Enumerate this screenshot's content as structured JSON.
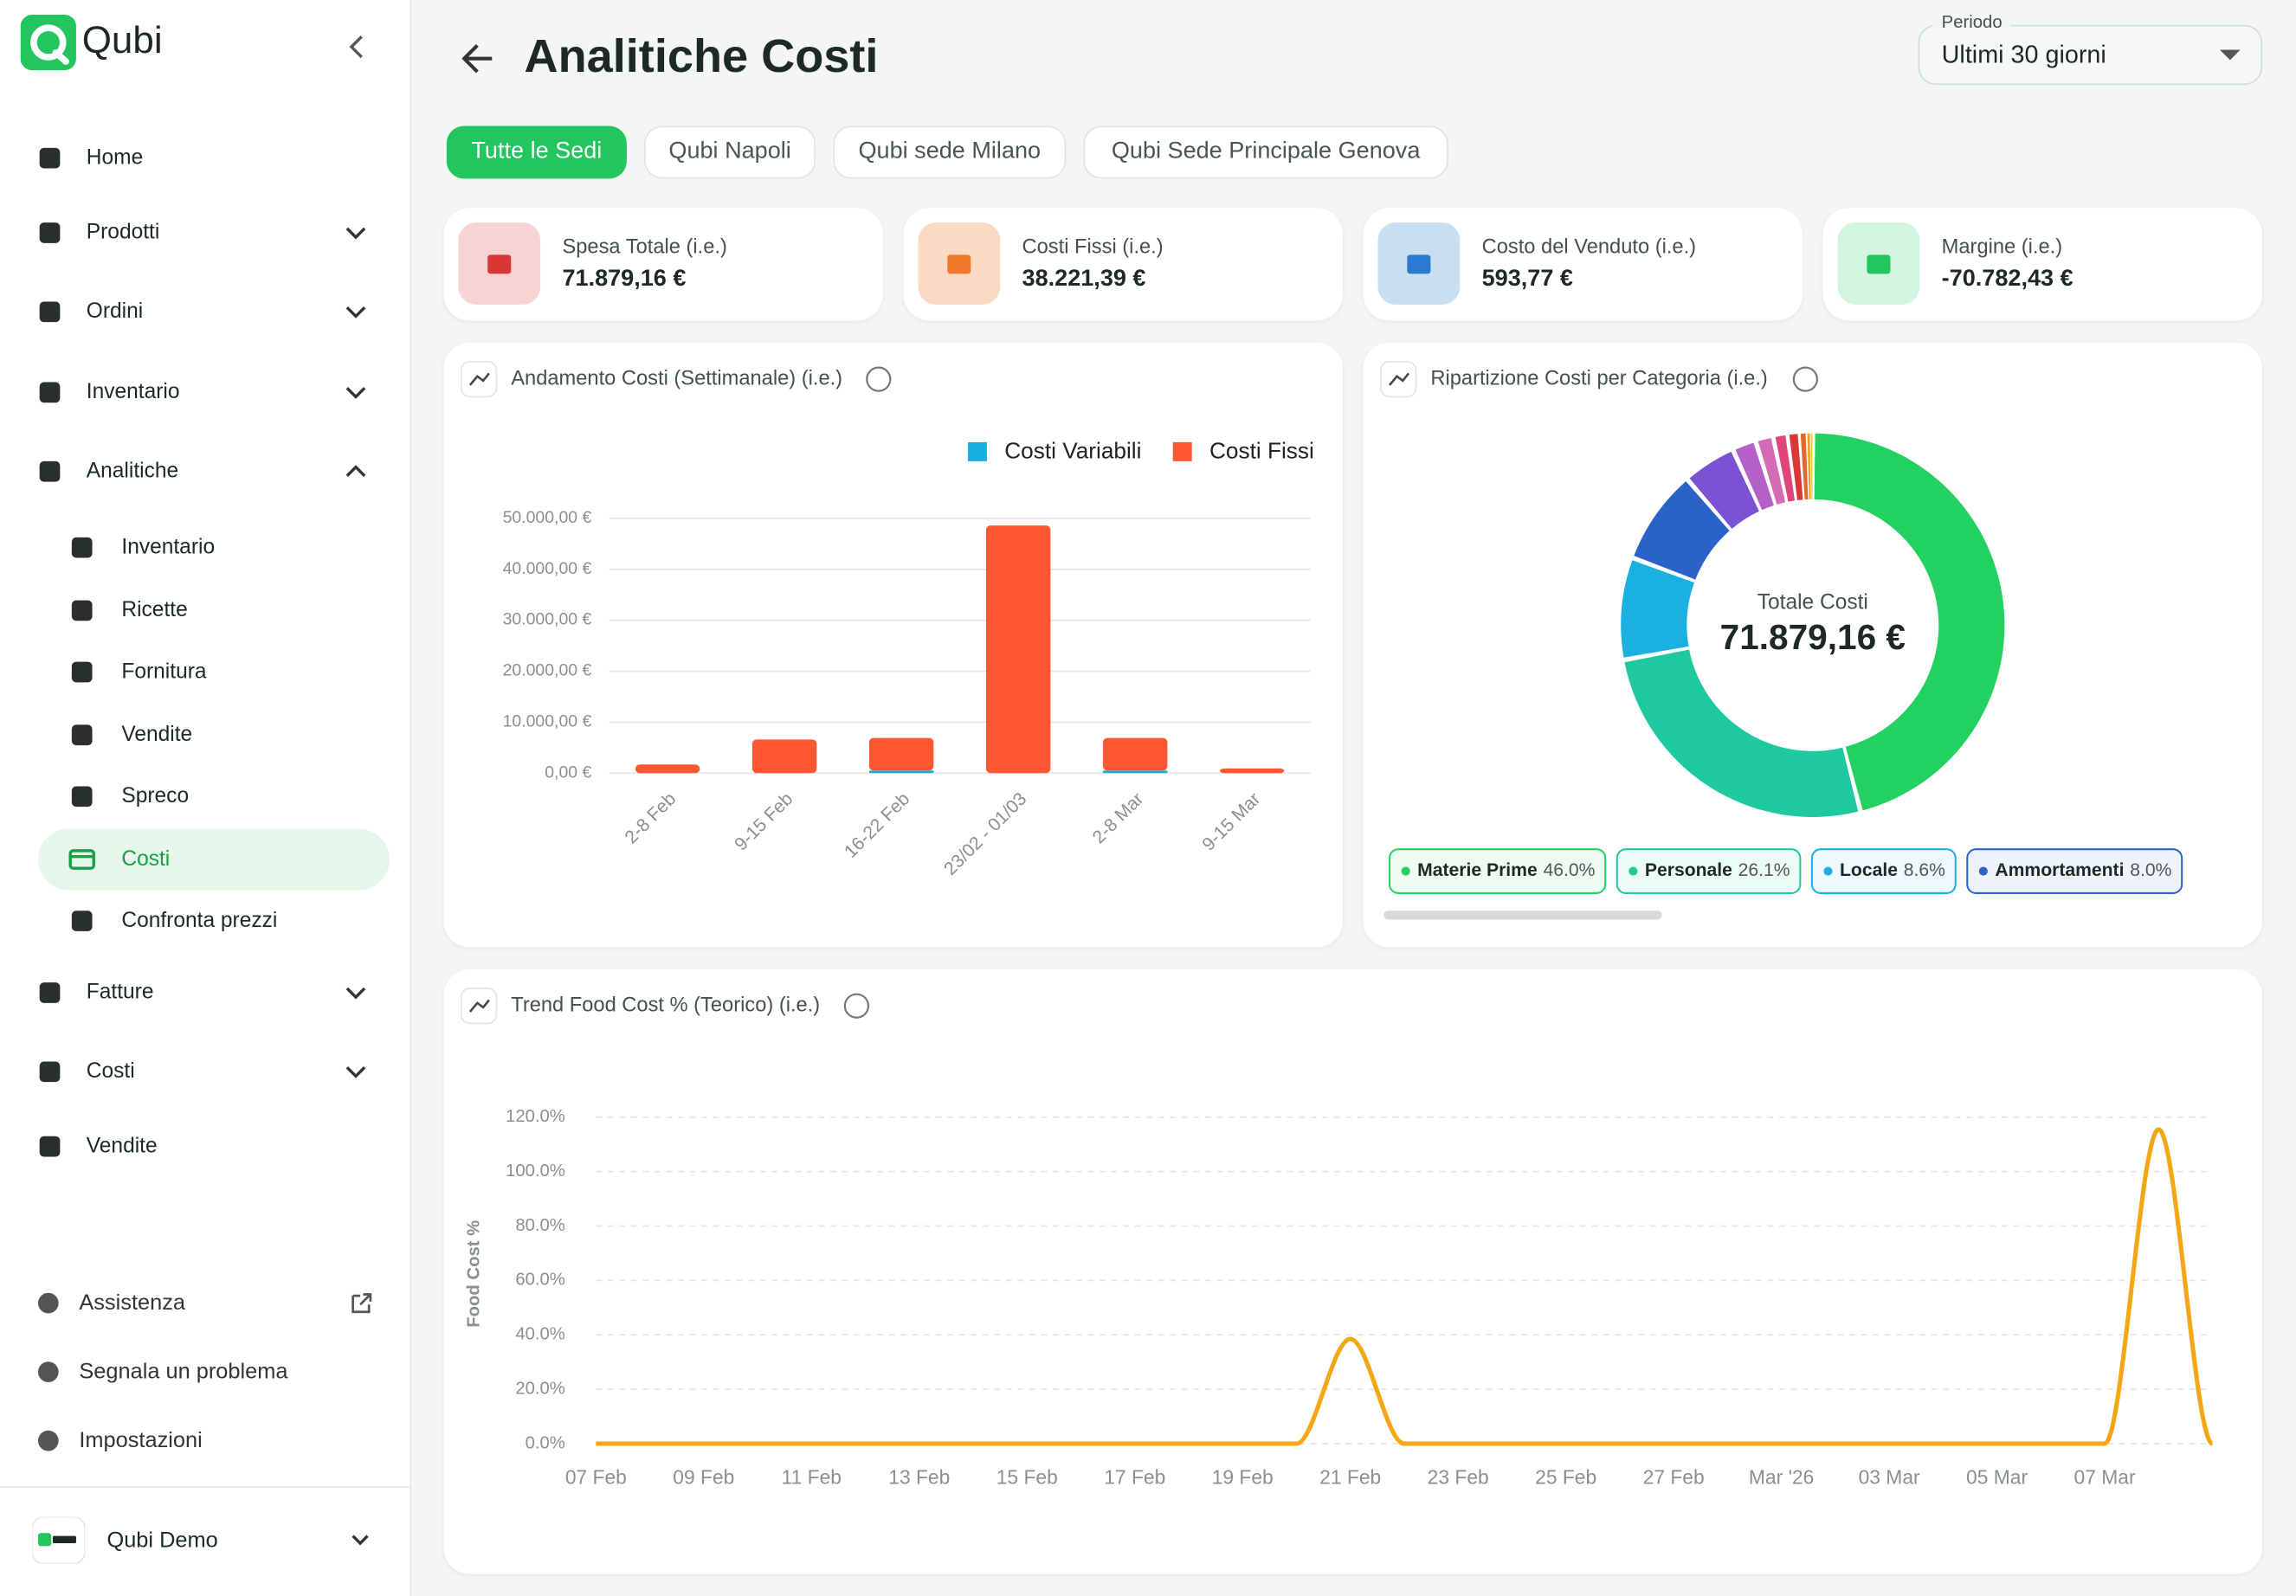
{
  "sidebar": {
    "logo": "Qubi",
    "nav": [
      "Home",
      "Prodotti",
      "Ordini",
      "Inventario",
      "Analitiche",
      "Fatture",
      "Costi",
      "Vendite"
    ],
    "sub_nav": [
      "Inventario",
      "Ricette",
      "Fornitura",
      "Vendite",
      "Spreco",
      "Costi",
      "Confronta prezzi"
    ],
    "bottom": [
      "Assistenza",
      "Segnala un problema",
      "Impostazioni"
    ],
    "user": "Qubi Demo"
  },
  "header": {
    "title": "Analitiche Costi",
    "period_label": "Periodo",
    "period_value": "Ultimi 30 giorni"
  },
  "tabs": [
    "Tutte le Sedi",
    "Qubi Napoli",
    "Qubi sede Milano",
    "Qubi Sede Principale Genova"
  ],
  "kpis": [
    {
      "label": "Spesa Totale (i.e.)",
      "value": "71.879,16 €"
    },
    {
      "label": "Costi Fissi (i.e.)",
      "value": "38.221,39 €"
    },
    {
      "label": "Costo del Venduto (i.e.)",
      "value": "593,77 €"
    },
    {
      "label": "Margine (i.e.)",
      "value": "-70.782,43 €"
    }
  ],
  "cost_chart": {
    "type": "stacked-bar",
    "title": "Andamento Costi (Settimanale) (i.e.)",
    "categories": [
      "2-8 Feb",
      "9-15 Feb",
      "16-22 Feb",
      "23/02 - 01/03",
      "2-8 Mar",
      "9-15 Mar"
    ],
    "series": [
      {
        "name": "Costi Variabili",
        "color": "#1aafe0",
        "values": [
          0,
          0,
          500,
          0,
          500,
          0
        ]
      },
      {
        "name": "Costi Fissi",
        "color": "#ff5733",
        "values": [
          1700,
          6600,
          6400,
          48600,
          6400,
          900
        ]
      }
    ],
    "ylim": [
      0,
      50000
    ],
    "yticks": [
      {
        "value": 0,
        "label": "0,00 €"
      },
      {
        "value": 10000,
        "label": "10.000,00 €"
      },
      {
        "value": 20000,
        "label": "20.000,00 €"
      },
      {
        "value": 30000,
        "label": "30.000,00 €"
      },
      {
        "value": 40000,
        "label": "40.000,00 €"
      },
      {
        "value": 50000,
        "label": "50.000,00 €"
      }
    ],
    "grid": true
  },
  "category_chart": {
    "type": "donut",
    "title": "Ripartizione Costi per Categoria (i.e.)",
    "center_label": "Totale Costi",
    "center_value": "71.879,16 €",
    "categories": [
      "Materie Prime",
      "Personale",
      "Locale",
      "Ammortamenti",
      null,
      null,
      null,
      null,
      null,
      null,
      null,
      null
    ],
    "values": [
      46.0,
      26.1,
      8.6,
      8.0,
      4.5,
      2.0,
      1.5,
      1.2,
      1.0,
      0.6,
      0.3,
      0.2
    ],
    "value_labels": [
      "46.0%",
      "26.1%",
      "8.6%",
      "8.0%",
      null,
      null,
      null,
      null,
      null,
      null,
      null,
      null
    ],
    "colors": [
      "#22d160",
      "#1fc9a0",
      "#1ab0e0",
      "#2b62c9",
      "#7b52d1",
      "#b560c9",
      "#d46bb5",
      "#e0457a",
      "#d93636",
      "#e8662e",
      "#f0a020",
      "#f5c842"
    ]
  },
  "food_cost_chart": {
    "type": "line",
    "title": "Trend Food Cost % (Teorico) (i.e.)",
    "y_label": "Food Cost %",
    "categories": [
      "07 Feb",
      null,
      "09 Feb",
      null,
      "11 Feb",
      null,
      "13 Feb",
      null,
      "15 Feb",
      null,
      "17 Feb",
      null,
      "19 Feb",
      null,
      "21 Feb",
      null,
      "23 Feb",
      null,
      "25 Feb",
      null,
      "27 Feb",
      null,
      "Mar '26",
      null,
      "03 Mar",
      null,
      "05 Mar",
      null,
      "07 Mar",
      null,
      null
    ],
    "series": [
      {
        "name": "Food Cost %",
        "color": "#f5a614",
        "values": [
          0,
          0,
          0,
          0,
          0,
          0,
          0,
          0,
          0,
          0,
          0,
          0,
          0,
          0,
          38.5,
          0,
          0,
          0,
          0,
          0,
          0,
          0,
          0,
          0,
          0,
          0,
          0,
          0,
          0,
          115.5,
          0
        ]
      }
    ],
    "ylim": [
      0,
      120
    ],
    "yticks": [
      {
        "value": 0,
        "label": "0.0%"
      },
      {
        "value": 20,
        "label": "20.0%"
      },
      {
        "value": 40,
        "label": "40.0%"
      },
      {
        "value": 60,
        "label": "60.0%"
      },
      {
        "value": 80,
        "label": "80.0%"
      },
      {
        "value": 100,
        "label": "100.0%"
      },
      {
        "value": 120,
        "label": "120.0%"
      }
    ],
    "grid": true
  }
}
